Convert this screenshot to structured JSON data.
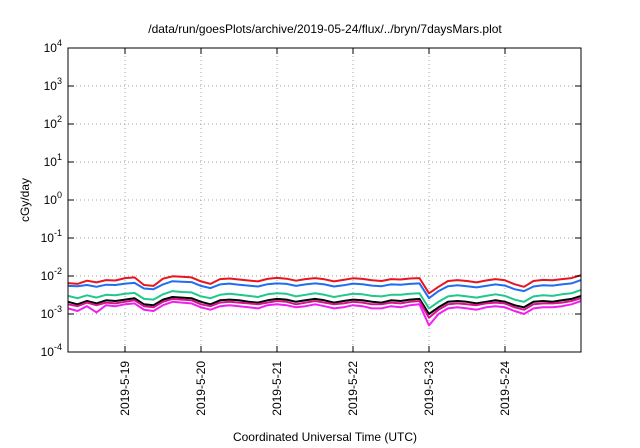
{
  "chart_data": {
    "type": "line",
    "title": "/data/run/goesPlots/archive/2019-05-24/flux/../bryn/7daysMars.plot",
    "xlabel": "Coordinated Universal Time (UTC)",
    "ylabel": "cGy/day",
    "y_scale": "log",
    "ylim": [
      0.0001,
      10000
    ],
    "xlim": [
      "2019-05-18T06:00",
      "2019-05-25T00:00"
    ],
    "grid": true,
    "x_tick_labels": [
      "2019-5-19",
      "2019-5-20",
      "2019-5-21",
      "2019-5-22",
      "2019-5-23",
      "2019-5-24"
    ],
    "x_tick_dates": [
      "2019-05-19",
      "2019-05-20",
      "2019-05-21",
      "2019-05-22",
      "2019-05-23",
      "2019-05-24"
    ],
    "y_ticks": [
      {
        "base": "10",
        "exp": "-4",
        "value": 0.0001
      },
      {
        "base": "10",
        "exp": "-3",
        "value": 0.001
      },
      {
        "base": "10",
        "exp": "-2",
        "value": 0.01
      },
      {
        "base": "10",
        "exp": "-1",
        "value": 0.1
      },
      {
        "base": "10",
        "exp": "0",
        "value": 1
      },
      {
        "base": "10",
        "exp": "1",
        "value": 10
      },
      {
        "base": "10",
        "exp": "2",
        "value": 100
      },
      {
        "base": "10",
        "exp": "3",
        "value": 1000
      },
      {
        "base": "10",
        "exp": "4",
        "value": 10000
      }
    ],
    "x": [
      "2019-05-18T06:00",
      "2019-05-18T09:00",
      "2019-05-18T12:00",
      "2019-05-18T15:00",
      "2019-05-18T18:00",
      "2019-05-18T21:00",
      "2019-05-19T00:00",
      "2019-05-19T03:00",
      "2019-05-19T06:00",
      "2019-05-19T09:00",
      "2019-05-19T12:00",
      "2019-05-19T15:00",
      "2019-05-19T18:00",
      "2019-05-19T21:00",
      "2019-05-20T00:00",
      "2019-05-20T03:00",
      "2019-05-20T06:00",
      "2019-05-20T09:00",
      "2019-05-20T12:00",
      "2019-05-20T15:00",
      "2019-05-20T18:00",
      "2019-05-20T21:00",
      "2019-05-21T00:00",
      "2019-05-21T03:00",
      "2019-05-21T06:00",
      "2019-05-21T09:00",
      "2019-05-21T12:00",
      "2019-05-21T15:00",
      "2019-05-21T18:00",
      "2019-05-21T21:00",
      "2019-05-22T00:00",
      "2019-05-22T03:00",
      "2019-05-22T06:00",
      "2019-05-22T09:00",
      "2019-05-22T12:00",
      "2019-05-22T15:00",
      "2019-05-22T18:00",
      "2019-05-22T21:00",
      "2019-05-23T00:00",
      "2019-05-23T03:00",
      "2019-05-23T06:00",
      "2019-05-23T09:00",
      "2019-05-23T12:00",
      "2019-05-23T15:00",
      "2019-05-23T18:00",
      "2019-05-23T21:00",
      "2019-05-24T00:00",
      "2019-05-24T03:00",
      "2019-05-24T06:00",
      "2019-05-24T09:00",
      "2019-05-24T12:00",
      "2019-05-24T15:00",
      "2019-05-24T18:00",
      "2019-05-24T21:00",
      "2019-05-25T00:00"
    ],
    "series": [
      {
        "color": "#e8141e",
        "values": [
          0.0065,
          0.0062,
          0.0075,
          0.0068,
          0.0078,
          0.0076,
          0.0088,
          0.0092,
          0.0058,
          0.0055,
          0.0085,
          0.0098,
          0.0096,
          0.0092,
          0.0072,
          0.0062,
          0.0083,
          0.0086,
          0.0081,
          0.0076,
          0.0072,
          0.0084,
          0.0089,
          0.0085,
          0.0075,
          0.0083,
          0.0088,
          0.0082,
          0.0072,
          0.0079,
          0.0087,
          0.0084,
          0.0077,
          0.0074,
          0.0083,
          0.0081,
          0.0086,
          0.0088,
          0.0035,
          0.0052,
          0.0074,
          0.0078,
          0.0074,
          0.0068,
          0.0076,
          0.0083,
          0.0077,
          0.0061,
          0.0052,
          0.0074,
          0.0079,
          0.0077,
          0.0083,
          0.0088,
          0.0105
        ]
      },
      {
        "color": "#1e6ef0",
        "values": [
          0.0055,
          0.0054,
          0.0058,
          0.0052,
          0.0059,
          0.0058,
          0.0063,
          0.0066,
          0.0047,
          0.0045,
          0.006,
          0.0073,
          0.0071,
          0.0069,
          0.0055,
          0.0048,
          0.006,
          0.0063,
          0.0059,
          0.0056,
          0.0053,
          0.0061,
          0.0064,
          0.0062,
          0.0055,
          0.006,
          0.0064,
          0.006,
          0.0053,
          0.0057,
          0.0063,
          0.0061,
          0.0056,
          0.0054,
          0.006,
          0.0059,
          0.0062,
          0.0064,
          0.0026,
          0.004,
          0.0054,
          0.0057,
          0.0054,
          0.005,
          0.0055,
          0.006,
          0.0056,
          0.0045,
          0.004,
          0.0053,
          0.0057,
          0.0056,
          0.006,
          0.0064,
          0.0078
        ]
      },
      {
        "color": "#20c88c",
        "values": [
          0.003,
          0.0026,
          0.0031,
          0.0027,
          0.0032,
          0.0031,
          0.0034,
          0.0036,
          0.0025,
          0.0024,
          0.0033,
          0.004,
          0.0038,
          0.0037,
          0.0029,
          0.0026,
          0.0032,
          0.0034,
          0.0032,
          0.003,
          0.0028,
          0.0033,
          0.0035,
          0.0034,
          0.0029,
          0.0032,
          0.0035,
          0.0032,
          0.0028,
          0.0031,
          0.0034,
          0.0033,
          0.003,
          0.0029,
          0.0032,
          0.0032,
          0.0034,
          0.0035,
          0.0014,
          0.0021,
          0.0029,
          0.0031,
          0.0029,
          0.0027,
          0.003,
          0.0033,
          0.003,
          0.0024,
          0.0021,
          0.0029,
          0.0031,
          0.003,
          0.0033,
          0.0035,
          0.0043
        ]
      },
      {
        "color": "#000000",
        "values": [
          0.0021,
          0.0018,
          0.0022,
          0.0019,
          0.0023,
          0.0022,
          0.0024,
          0.0026,
          0.0018,
          0.0017,
          0.0024,
          0.0028,
          0.0027,
          0.0026,
          0.0021,
          0.0018,
          0.0023,
          0.0024,
          0.0023,
          0.0021,
          0.002,
          0.0023,
          0.0025,
          0.0024,
          0.0021,
          0.0023,
          0.0025,
          0.0023,
          0.002,
          0.0022,
          0.0024,
          0.0023,
          0.0021,
          0.002,
          0.0023,
          0.0022,
          0.0024,
          0.0025,
          0.001,
          0.0015,
          0.0021,
          0.0022,
          0.0021,
          0.0019,
          0.0021,
          0.0023,
          0.0021,
          0.0017,
          0.0015,
          0.0021,
          0.0022,
          0.0021,
          0.0023,
          0.0025,
          0.003
        ]
      },
      {
        "color": "#d4148c",
        "values": [
          0.0018,
          0.0016,
          0.002,
          0.0017,
          0.002,
          0.0019,
          0.0021,
          0.0023,
          0.0016,
          0.0015,
          0.0021,
          0.0025,
          0.0024,
          0.0023,
          0.0018,
          0.0016,
          0.002,
          0.0021,
          0.002,
          0.0019,
          0.0018,
          0.002,
          0.0022,
          0.0021,
          0.0018,
          0.002,
          0.0022,
          0.002,
          0.0018,
          0.0019,
          0.0021,
          0.002,
          0.0018,
          0.0018,
          0.002,
          0.0019,
          0.0021,
          0.0022,
          0.0008,
          0.0013,
          0.0018,
          0.0019,
          0.0018,
          0.0017,
          0.0019,
          0.002,
          0.0019,
          0.0015,
          0.0013,
          0.0018,
          0.0019,
          0.0019,
          0.002,
          0.0022,
          0.0026
        ]
      },
      {
        "color": "#f020f0",
        "values": [
          0.0014,
          0.0012,
          0.0016,
          0.0011,
          0.0017,
          0.0016,
          0.0018,
          0.0019,
          0.0013,
          0.0012,
          0.0017,
          0.0021,
          0.002,
          0.0019,
          0.0015,
          0.0013,
          0.0016,
          0.0017,
          0.0016,
          0.0015,
          0.0014,
          0.0017,
          0.0018,
          0.0017,
          0.0015,
          0.0016,
          0.0018,
          0.0016,
          0.0014,
          0.0015,
          0.0017,
          0.0016,
          0.0014,
          0.0014,
          0.0016,
          0.0015,
          0.0017,
          0.0018,
          0.0005,
          0.001,
          0.0014,
          0.0015,
          0.0014,
          0.0013,
          0.0015,
          0.0016,
          0.0015,
          0.0012,
          0.001,
          0.0014,
          0.0015,
          0.0015,
          0.0016,
          0.0018,
          0.0022
        ]
      }
    ]
  }
}
